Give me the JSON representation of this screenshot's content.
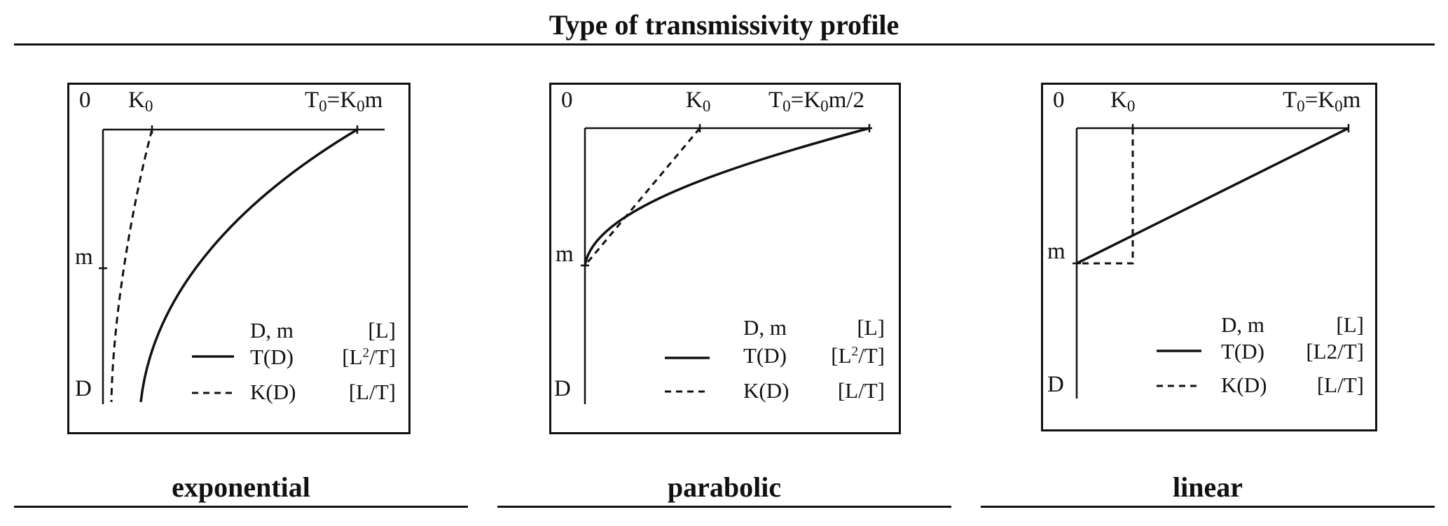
{
  "header": {
    "title": "Type of transmissivity profile"
  },
  "panels": [
    {
      "id": "exponential",
      "caption": "exponential",
      "labels": {
        "origin": "0",
        "k0": "K",
        "k0_sub": "0",
        "t0_a": "T",
        "t0_sub1": "0",
        "t0_b": "=K",
        "t0_sub2": "0",
        "t0_c": "m",
        "m": "m",
        "d": "D"
      },
      "legend": {
        "r1_name": "D, m",
        "r1_unit": "[L]",
        "r2_name": "T(D)",
        "r2_unit_a": "[L",
        "r2_unit_sup": "2",
        "r2_unit_b": "/T]",
        "r3_name": "K(D)",
        "r3_unit": "[L/T]"
      }
    },
    {
      "id": "parabolic",
      "caption": "parabolic",
      "labels": {
        "origin": "0",
        "k0": "K",
        "k0_sub": "0",
        "t0_a": "T",
        "t0_sub1": "0",
        "t0_b": "=K",
        "t0_sub2": "0",
        "t0_c": "m/2",
        "m": "m",
        "d": "D"
      },
      "legend": {
        "r1_name": "D, m",
        "r1_unit": "[L]",
        "r2_name": "T(D)",
        "r2_unit_a": "[L",
        "r2_unit_sup": "2",
        "r2_unit_b": "/T]",
        "r3_name": "K(D)",
        "r3_unit": "[L/T]"
      }
    },
    {
      "id": "linear",
      "caption": "linear",
      "labels": {
        "origin": "0",
        "k0": "K",
        "k0_sub": "0",
        "t0_a": "T",
        "t0_sub1": "0",
        "t0_b": "=K",
        "t0_sub2": "0",
        "t0_c": "m",
        "m": "m",
        "d": "D"
      },
      "legend": {
        "r1_name": "D, m",
        "r1_unit": "[L]",
        "r2_name": "T(D)",
        "r2_unit": "[L2/T]",
        "r3_name": "K(D)",
        "r3_unit": "[L/T]"
      }
    }
  ]
}
